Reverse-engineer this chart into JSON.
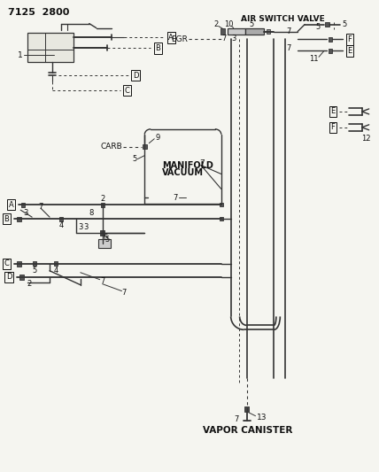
{
  "title": "7125  2800",
  "bg_color": "#f5f5f0",
  "line_color": "#333333",
  "text_color": "#111111",
  "figsize": [
    4.28,
    5.33
  ],
  "dpi": 100,
  "labels": {
    "air_switch_valve": "AIR SWITCH VALVE",
    "egr": "EGR",
    "carb": "CARB",
    "manifold_vacuum_1": "MANIFOLD",
    "manifold_vacuum_2": "VACUUM",
    "vapor_canister": "VAPOR CANISTER"
  }
}
